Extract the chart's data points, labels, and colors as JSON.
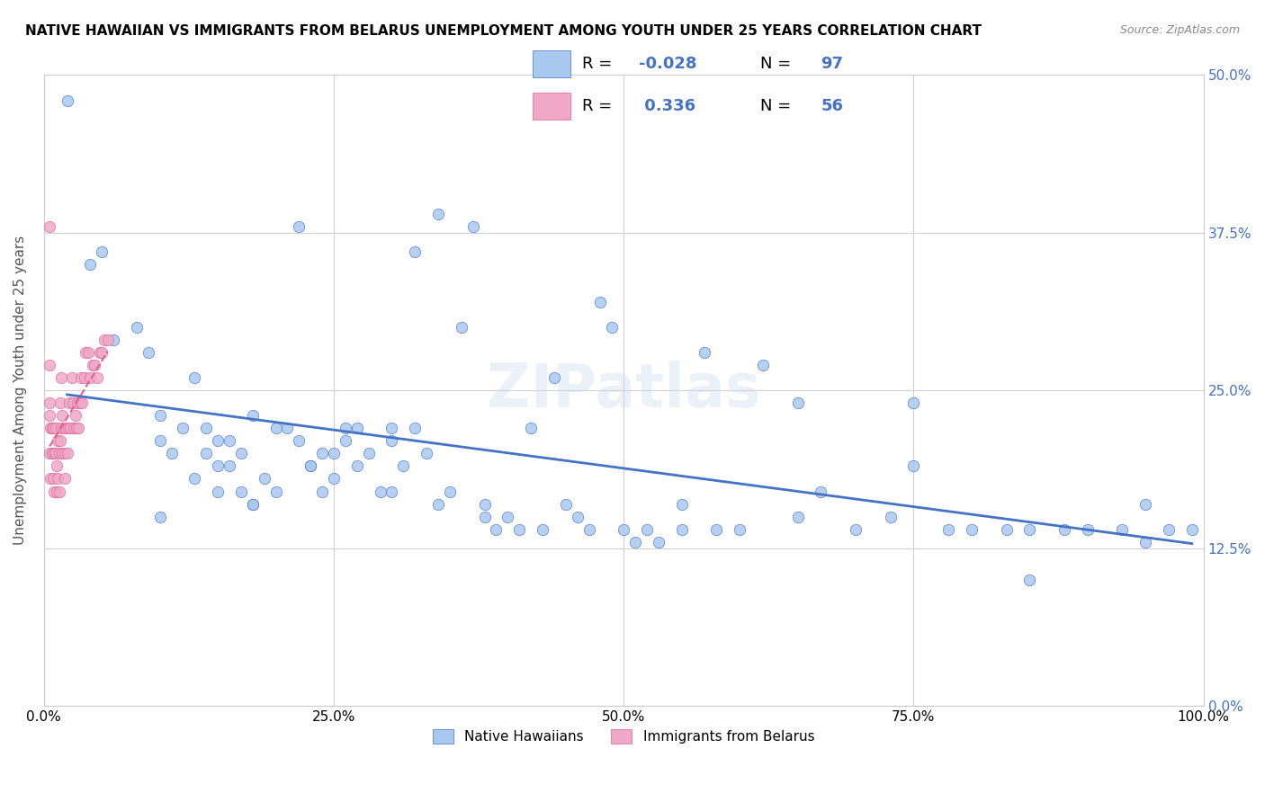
{
  "title": "NATIVE HAWAIIAN VS IMMIGRANTS FROM BELARUS UNEMPLOYMENT AMONG YOUTH UNDER 25 YEARS CORRELATION CHART",
  "source": "Source: ZipAtlas.com",
  "xlabel_bottom": "",
  "ylabel": "Unemployment Among Youth under 25 years",
  "xlim": [
    0.0,
    1.0
  ],
  "ylim": [
    0.0,
    0.5
  ],
  "xticks": [
    0.0,
    0.25,
    0.5,
    0.75,
    1.0
  ],
  "xticklabels": [
    "0.0%",
    "25.0%",
    "50.0%",
    "75.0%",
    "100.0%"
  ],
  "yticks": [
    0.0,
    0.125,
    0.25,
    0.375,
    0.5
  ],
  "yticklabels_right": [
    "0.0%",
    "12.5%",
    "25.0%",
    "37.5%",
    "50.0%"
  ],
  "background_color": "#ffffff",
  "watermark": "ZIPatlas",
  "legend_r1": "R = -0.028",
  "legend_n1": "N = 97",
  "legend_r2": "R =  0.336",
  "legend_n2": "N = 56",
  "color_blue": "#a8c8f0",
  "color_pink": "#f0a8c8",
  "trendline_blue_color": "#4472c4",
  "trendline_pink_color": "#f48cb0",
  "grid_color": "#d0d0d0",
  "native_hawaiian_x": [
    0.02,
    0.04,
    0.05,
    0.06,
    0.08,
    0.09,
    0.1,
    0.1,
    0.11,
    0.12,
    0.13,
    0.13,
    0.14,
    0.14,
    0.15,
    0.15,
    0.16,
    0.16,
    0.17,
    0.17,
    0.18,
    0.18,
    0.19,
    0.2,
    0.2,
    0.21,
    0.22,
    0.23,
    0.23,
    0.24,
    0.24,
    0.25,
    0.25,
    0.26,
    0.27,
    0.27,
    0.28,
    0.29,
    0.3,
    0.3,
    0.31,
    0.32,
    0.32,
    0.33,
    0.34,
    0.35,
    0.36,
    0.37,
    0.38,
    0.39,
    0.4,
    0.41,
    0.42,
    0.43,
    0.44,
    0.45,
    0.46,
    0.47,
    0.48,
    0.49,
    0.5,
    0.51,
    0.52,
    0.53,
    0.55,
    0.57,
    0.58,
    0.6,
    0.62,
    0.65,
    0.67,
    0.7,
    0.73,
    0.75,
    0.78,
    0.8,
    0.83,
    0.85,
    0.88,
    0.9,
    0.93,
    0.95,
    0.97,
    0.99,
    0.15,
    0.18,
    0.22,
    0.26,
    0.3,
    0.34,
    0.38,
    0.55,
    0.65,
    0.75,
    0.85,
    0.95,
    0.1
  ],
  "native_hawaiian_y": [
    0.48,
    0.35,
    0.36,
    0.29,
    0.3,
    0.28,
    0.21,
    0.23,
    0.2,
    0.22,
    0.18,
    0.26,
    0.2,
    0.22,
    0.19,
    0.17,
    0.21,
    0.19,
    0.17,
    0.2,
    0.16,
    0.23,
    0.18,
    0.17,
    0.22,
    0.22,
    0.21,
    0.19,
    0.19,
    0.2,
    0.17,
    0.18,
    0.2,
    0.22,
    0.22,
    0.19,
    0.2,
    0.17,
    0.21,
    0.22,
    0.19,
    0.36,
    0.22,
    0.2,
    0.39,
    0.17,
    0.3,
    0.38,
    0.16,
    0.14,
    0.15,
    0.14,
    0.22,
    0.14,
    0.26,
    0.16,
    0.15,
    0.14,
    0.32,
    0.3,
    0.14,
    0.13,
    0.14,
    0.13,
    0.16,
    0.28,
    0.14,
    0.14,
    0.27,
    0.15,
    0.17,
    0.14,
    0.15,
    0.24,
    0.14,
    0.14,
    0.14,
    0.14,
    0.14,
    0.14,
    0.14,
    0.16,
    0.14,
    0.14,
    0.21,
    0.16,
    0.38,
    0.21,
    0.17,
    0.16,
    0.15,
    0.14,
    0.24,
    0.19,
    0.1,
    0.13,
    0.15
  ],
  "belarus_x": [
    0.005,
    0.005,
    0.005,
    0.005,
    0.005,
    0.006,
    0.006,
    0.007,
    0.007,
    0.008,
    0.008,
    0.009,
    0.009,
    0.01,
    0.01,
    0.011,
    0.011,
    0.012,
    0.012,
    0.013,
    0.013,
    0.014,
    0.014,
    0.015,
    0.015,
    0.016,
    0.016,
    0.017,
    0.018,
    0.018,
    0.019,
    0.02,
    0.021,
    0.022,
    0.023,
    0.024,
    0.025,
    0.026,
    0.027,
    0.028,
    0.029,
    0.03,
    0.031,
    0.032,
    0.033,
    0.035,
    0.036,
    0.038,
    0.04,
    0.042,
    0.044,
    0.046,
    0.048,
    0.05,
    0.052,
    0.055
  ],
  "belarus_y": [
    0.38,
    0.27,
    0.24,
    0.23,
    0.2,
    0.22,
    0.18,
    0.22,
    0.2,
    0.22,
    0.18,
    0.2,
    0.17,
    0.2,
    0.22,
    0.19,
    0.17,
    0.21,
    0.18,
    0.2,
    0.17,
    0.24,
    0.21,
    0.26,
    0.22,
    0.23,
    0.2,
    0.22,
    0.18,
    0.2,
    0.22,
    0.2,
    0.22,
    0.24,
    0.22,
    0.26,
    0.24,
    0.22,
    0.23,
    0.22,
    0.24,
    0.22,
    0.24,
    0.26,
    0.24,
    0.26,
    0.28,
    0.28,
    0.26,
    0.27,
    0.27,
    0.26,
    0.28,
    0.28,
    0.29,
    0.29
  ]
}
